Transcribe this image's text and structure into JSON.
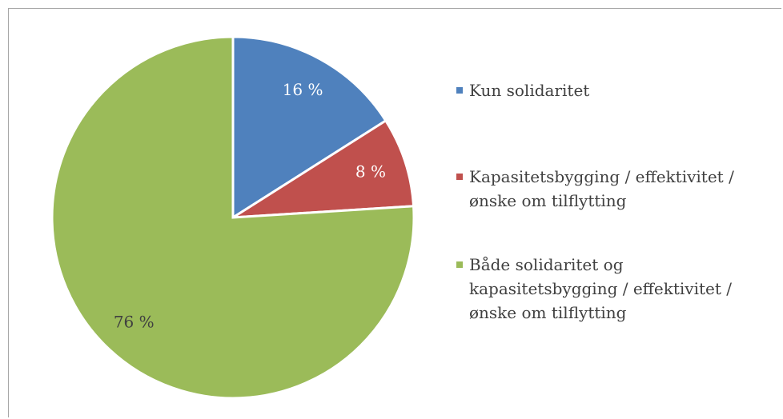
{
  "chart_data": {
    "type": "pie",
    "categories": [
      "Kun solidaritet",
      "Kapasitetsbygging / effektivitet / ønske om tilflytting",
      "Både solidaritet og kapasitetsbygging / effektivitet / ønske om tilflytting"
    ],
    "values": [
      16,
      8,
      76
    ],
    "value_labels": [
      "16 %",
      "8 %",
      "76 %"
    ],
    "colors": [
      "#4f81bd",
      "#c0504d",
      "#9bbb59"
    ],
    "legend": "right"
  }
}
